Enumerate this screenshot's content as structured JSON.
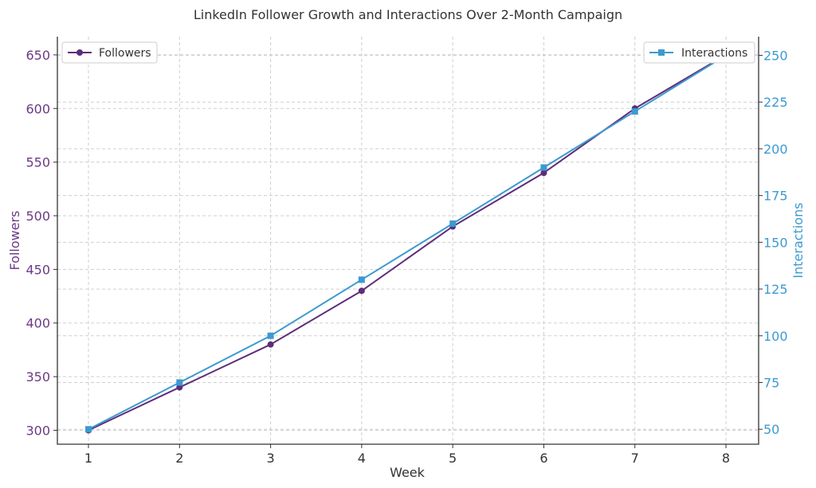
{
  "chart_data": {
    "type": "line",
    "title": "LinkedIn Follower Growth and Interactions Over 2-Month Campaign",
    "xlabel": "Week",
    "x": [
      1,
      2,
      3,
      4,
      5,
      6,
      7,
      8
    ],
    "x_ticks": [
      "1",
      "2",
      "3",
      "4",
      "5",
      "6",
      "7",
      "8"
    ],
    "grid": true,
    "series": [
      {
        "name": "Followers",
        "axis": "left",
        "values": [
          300,
          340,
          380,
          430,
          490,
          540,
          600,
          650
        ],
        "color": "#5e2d79",
        "marker": "circle",
        "legend_position": "top-left"
      },
      {
        "name": "Interactions",
        "axis": "right",
        "values": [
          50,
          75,
          100,
          130,
          160,
          190,
          220,
          250
        ],
        "color": "#3c9ad1",
        "marker": "square",
        "legend_position": "top-right"
      }
    ],
    "y_left": {
      "label": "Followers",
      "ticks": [
        300,
        350,
        400,
        450,
        500,
        550,
        600,
        650
      ],
      "ylim": [
        287,
        667
      ],
      "color": "#6b3a86"
    },
    "y_right": {
      "label": "Interactions",
      "ticks": [
        50,
        75,
        100,
        125,
        150,
        175,
        200,
        225,
        250
      ],
      "ylim": [
        42,
        260
      ],
      "color": "#3c9ad1"
    }
  }
}
